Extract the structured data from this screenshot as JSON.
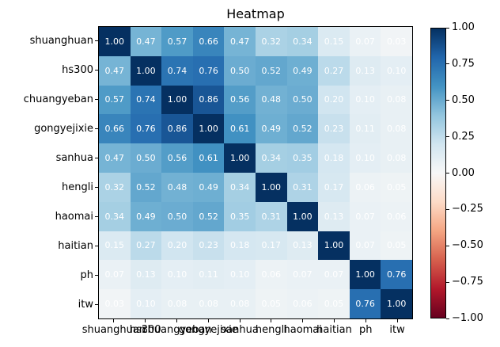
{
  "title": "Heatmap",
  "chart_data": {
    "type": "heatmap",
    "title": "Heatmap",
    "categories": [
      "shuanghuan",
      "hs300",
      "chuangyeban",
      "gongyejixie",
      "sanhua",
      "hengli",
      "haomai",
      "haitian",
      "ph",
      "itw"
    ],
    "matrix": [
      [
        1.0,
        0.47,
        0.57,
        0.66,
        0.47,
        0.32,
        0.34,
        0.15,
        0.07,
        0.03
      ],
      [
        0.47,
        1.0,
        0.74,
        0.76,
        0.5,
        0.52,
        0.49,
        0.27,
        0.13,
        0.1
      ],
      [
        0.57,
        0.74,
        1.0,
        0.86,
        0.56,
        0.48,
        0.5,
        0.2,
        0.1,
        0.08
      ],
      [
        0.66,
        0.76,
        0.86,
        1.0,
        0.61,
        0.49,
        0.52,
        0.23,
        0.11,
        0.08
      ],
      [
        0.47,
        0.5,
        0.56,
        0.61,
        1.0,
        0.34,
        0.35,
        0.18,
        0.1,
        0.08
      ],
      [
        0.32,
        0.52,
        0.48,
        0.49,
        0.34,
        1.0,
        0.31,
        0.17,
        0.06,
        0.05
      ],
      [
        0.34,
        0.49,
        0.5,
        0.52,
        0.35,
        0.31,
        1.0,
        0.13,
        0.07,
        0.06
      ],
      [
        0.15,
        0.27,
        0.2,
        0.23,
        0.18,
        0.17,
        0.13,
        1.0,
        0.07,
        0.05
      ],
      [
        0.07,
        0.13,
        0.1,
        0.11,
        0.1,
        0.06,
        0.07,
        0.07,
        1.0,
        0.76
      ],
      [
        0.03,
        0.1,
        0.08,
        0.08,
        0.08,
        0.05,
        0.06,
        0.05,
        0.76,
        1.0
      ]
    ],
    "value_decimals": 2,
    "vmin": -1,
    "vmax": 1,
    "grid_on": false,
    "colorbar": {
      "position": "right",
      "ticks": [
        {
          "value": 1.0,
          "label": "1.00"
        },
        {
          "value": 0.75,
          "label": "0.75"
        },
        {
          "value": 0.5,
          "label": "0.50"
        },
        {
          "value": 0.25,
          "label": "0.25"
        },
        {
          "value": 0.0,
          "label": "0.00"
        },
        {
          "value": -0.25,
          "label": "−0.25"
        },
        {
          "value": -0.5,
          "label": "−0.50"
        },
        {
          "value": -0.75,
          "label": "−0.75"
        },
        {
          "value": -1.0,
          "label": "−1.00"
        }
      ]
    }
  },
  "colors": {
    "colormap_name": "RdBu",
    "cmap_anchors": [
      "#67001f",
      "#b2182b",
      "#d6604d",
      "#f4a582",
      "#fddbc7",
      "#f7f7f7",
      "#d1e5f0",
      "#92c5de",
      "#4393c3",
      "#2166ac",
      "#053061"
    ],
    "cell_text": "#ffffff",
    "axis_text": "#000000",
    "background": "#ffffff"
  }
}
